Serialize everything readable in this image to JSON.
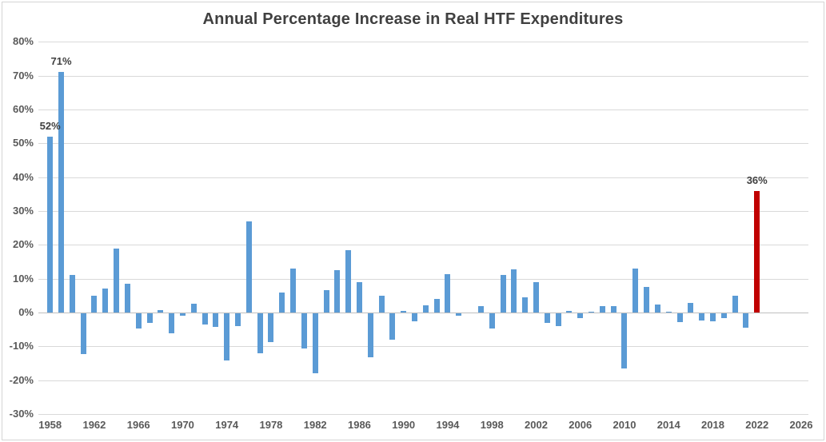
{
  "chart_data": {
    "type": "bar",
    "title": "Annual Percentage Increase in Real HTF Expenditures",
    "xlabel": "",
    "ylabel": "",
    "ylim": [
      -30,
      80
    ],
    "y_tick_step": 10,
    "y_tick_labels": [
      "80%",
      "70%",
      "60%",
      "50%",
      "40%",
      "30%",
      "20%",
      "10%",
      "0%",
      "-10%",
      "-20%",
      "-30%"
    ],
    "y_tick_values": [
      80,
      70,
      60,
      50,
      40,
      30,
      20,
      10,
      0,
      -10,
      -20,
      -30
    ],
    "x_tick_labels": [
      "1958",
      "1962",
      "1966",
      "1970",
      "1974",
      "1978",
      "1982",
      "1986",
      "1990",
      "1994",
      "1998",
      "2002",
      "2006",
      "2010",
      "2014",
      "2018",
      "2022",
      "2026"
    ],
    "x_tick_values": [
      1958,
      1962,
      1966,
      1970,
      1974,
      1978,
      1982,
      1986,
      1990,
      1994,
      1998,
      2002,
      2006,
      2010,
      2014,
      2018,
      2022,
      2026
    ],
    "xlim": [
      1957,
      2027
    ],
    "grid": true,
    "legend": "none",
    "series": [
      {
        "name": "Annual % increase in real HTF expenditures",
        "years": [
          1958,
          1959,
          1960,
          1961,
          1962,
          1963,
          1964,
          1965,
          1966,
          1967,
          1968,
          1969,
          1970,
          1971,
          1972,
          1973,
          1974,
          1975,
          1976,
          1977,
          1978,
          1979,
          1980,
          1981,
          1982,
          1983,
          1984,
          1985,
          1986,
          1987,
          1988,
          1989,
          1990,
          1991,
          1992,
          1993,
          1994,
          1995,
          1996,
          1997,
          1998,
          1999,
          2000,
          2001,
          2002,
          2003,
          2004,
          2005,
          2006,
          2007,
          2008,
          2009,
          2010,
          2011,
          2012,
          2013,
          2014,
          2015,
          2016,
          2017,
          2018,
          2019,
          2020,
          2021,
          2022
        ],
        "values": [
          52,
          71,
          11,
          -12,
          5,
          7,
          19,
          8.6,
          -4.6,
          -2.8,
          0.6,
          -6,
          -0.6,
          2.5,
          -3.4,
          -4,
          -14,
          -3.7,
          27,
          -11.7,
          -8.6,
          6,
          13,
          -10.3,
          -17.7,
          6.5,
          12.5,
          18.4,
          8.9,
          -13.1,
          5,
          -7.7,
          0.4,
          -2.4,
          2.2,
          4,
          11.3,
          -0.7,
          0,
          1.8,
          -4.5,
          11.1,
          12.7,
          4.6,
          8.9,
          -2.9,
          -3.7,
          0.4,
          -1.4,
          0.3,
          2,
          1.8,
          -16.3,
          13.1,
          7.5,
          2.4,
          0.3,
          -2.5,
          2.8,
          -2.1,
          -2.4,
          -1.4,
          4.9,
          -4.3,
          36
        ]
      }
    ],
    "highlight_year": 2022,
    "annotations": [
      {
        "year": 1958,
        "text": "52%"
      },
      {
        "year": 1959,
        "text": "71%"
      },
      {
        "year": 2022,
        "text": "36%"
      }
    ]
  },
  "colors": {
    "bar": "#5B9BD5",
    "highlight_bar": "#C00000",
    "gridline": "#D9D9D9",
    "axis_line": "#BFBFBF",
    "title_text": "#404040",
    "tick_text": "#595959",
    "annotation_text": "#404040",
    "background": "#FFFFFF"
  }
}
